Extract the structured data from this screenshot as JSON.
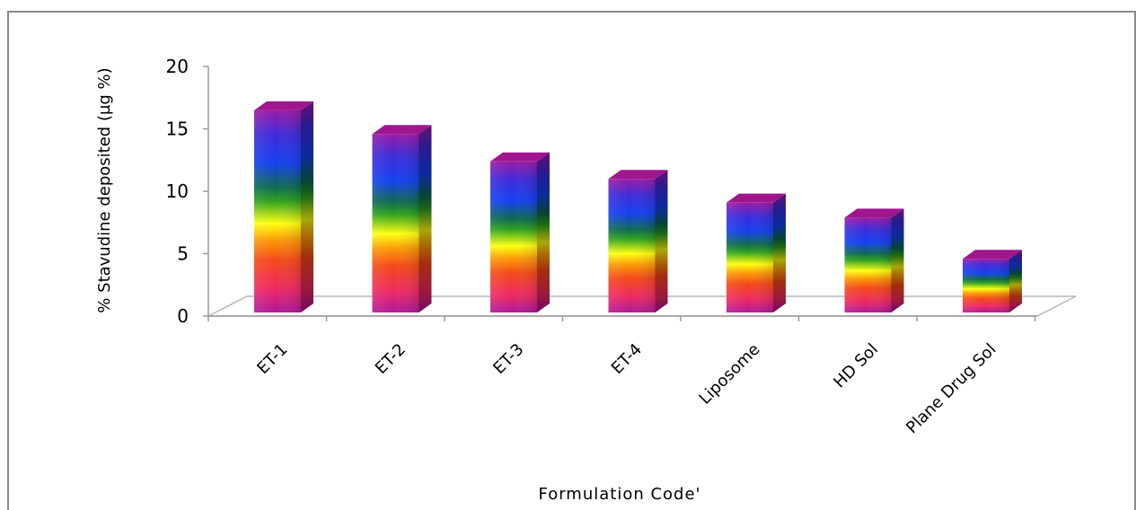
{
  "chart_data": {
    "type": "bar",
    "title": "",
    "xlabel": "Formulation Code'",
    "ylabel": "% Stavudine deposited (µg %)",
    "categories": [
      "ET-1",
      "ET-2",
      "ET-3",
      "ET-4",
      "Liposome",
      "HD Sol",
      "Plane Drug Sol"
    ],
    "values": [
      16.2,
      14.3,
      12.1,
      10.7,
      8.8,
      7.6,
      4.3
    ],
    "ylim": [
      0,
      20
    ],
    "yticks": [
      "0",
      "5",
      "10",
      "15",
      "20"
    ],
    "grid": false,
    "style": "3d-rainbow-bars"
  }
}
